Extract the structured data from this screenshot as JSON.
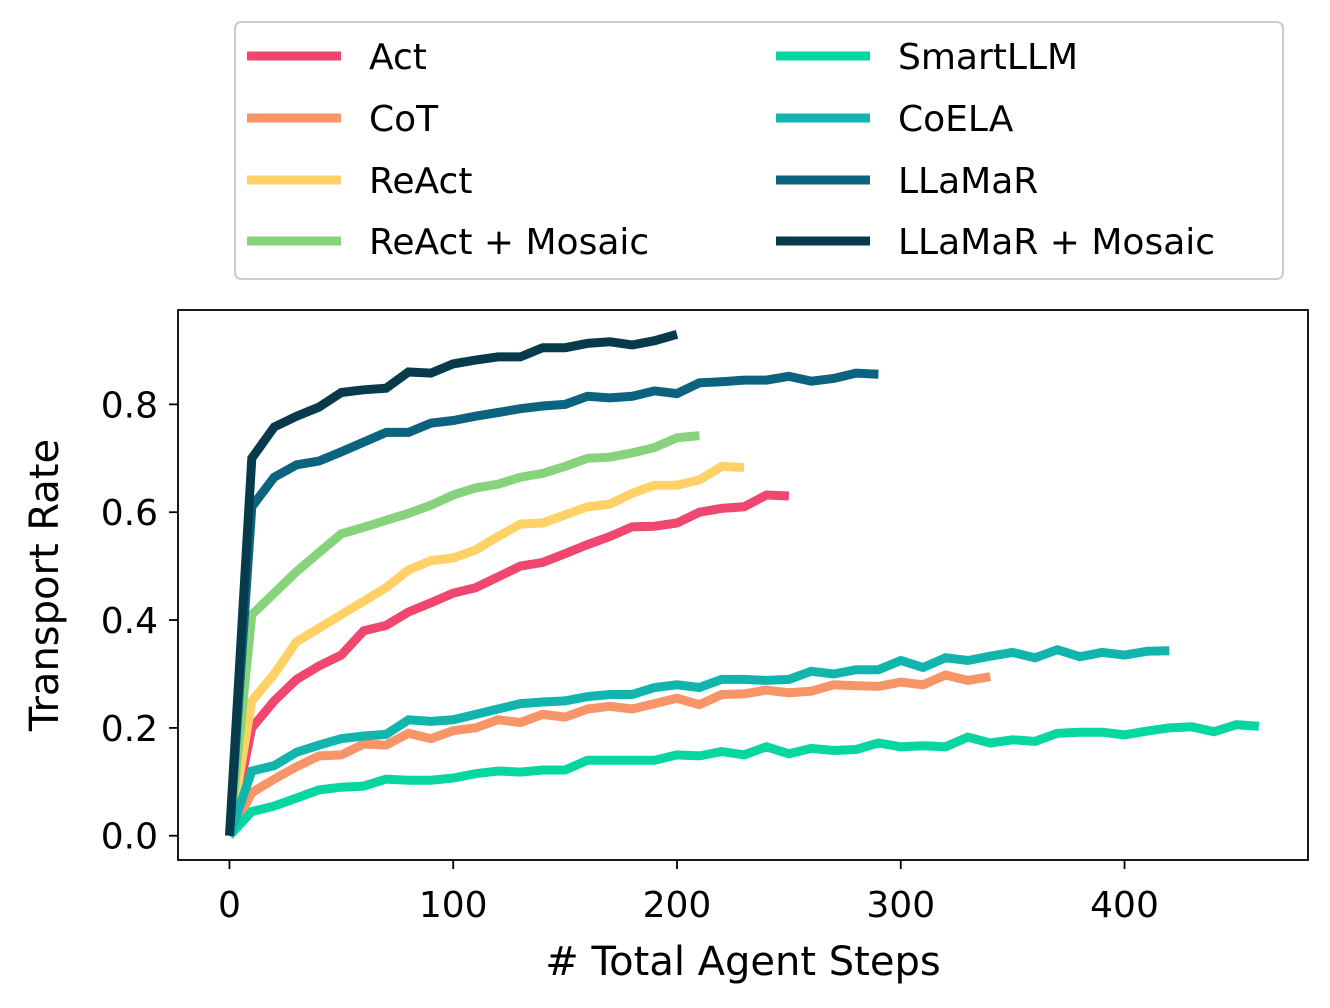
{
  "chart_data": {
    "type": "line",
    "xlabel": "# Total Agent Steps",
    "ylabel": "Transport Rate",
    "xlim": [
      -23,
      482
    ],
    "ylim": [
      -0.045,
      0.975
    ],
    "xticks": [
      0,
      100,
      200,
      300,
      400
    ],
    "yticks": [
      0.0,
      0.2,
      0.4,
      0.6,
      0.8
    ],
    "ytick_labels": [
      "0.0",
      "0.2",
      "0.4",
      "0.6",
      "0.8"
    ],
    "grid": false,
    "legend_position": "top (outside, two columns)",
    "series": [
      {
        "name": "Act",
        "color": "#ef476f",
        "x": [
          0,
          10,
          20,
          30,
          40,
          50,
          60,
          70,
          80,
          90,
          100,
          110,
          120,
          130,
          140,
          150,
          160,
          170,
          180,
          190,
          200,
          210,
          220,
          230,
          240,
          250
        ],
        "y": [
          0.0,
          0.2,
          0.25,
          0.29,
          0.315,
          0.335,
          0.38,
          0.39,
          0.415,
          0.432,
          0.45,
          0.46,
          0.48,
          0.5,
          0.507,
          0.523,
          0.54,
          0.555,
          0.573,
          0.574,
          0.58,
          0.6,
          0.607,
          0.61,
          0.632,
          0.63
        ]
      },
      {
        "name": "CoT",
        "color": "#f79468",
        "x": [
          0,
          10,
          20,
          30,
          40,
          50,
          60,
          70,
          80,
          90,
          100,
          110,
          120,
          130,
          140,
          150,
          160,
          170,
          180,
          190,
          200,
          210,
          220,
          230,
          240,
          250,
          260,
          270,
          280,
          290,
          300,
          310,
          320,
          330,
          340
        ],
        "y": [
          0.0,
          0.08,
          0.105,
          0.128,
          0.148,
          0.15,
          0.17,
          0.168,
          0.19,
          0.18,
          0.195,
          0.2,
          0.215,
          0.21,
          0.225,
          0.22,
          0.235,
          0.24,
          0.235,
          0.245,
          0.255,
          0.243,
          0.262,
          0.263,
          0.27,
          0.265,
          0.268,
          0.28,
          0.278,
          0.277,
          0.285,
          0.28,
          0.298,
          0.288,
          0.295
        ]
      },
      {
        "name": "ReAct",
        "color": "#ffd166",
        "x": [
          0,
          10,
          20,
          30,
          40,
          50,
          60,
          70,
          80,
          90,
          100,
          110,
          120,
          130,
          140,
          150,
          160,
          170,
          180,
          190,
          200,
          210,
          220,
          230
        ],
        "y": [
          0.0,
          0.25,
          0.3,
          0.36,
          0.385,
          0.41,
          0.435,
          0.46,
          0.493,
          0.51,
          0.515,
          0.53,
          0.555,
          0.578,
          0.58,
          0.595,
          0.61,
          0.615,
          0.635,
          0.65,
          0.65,
          0.66,
          0.685,
          0.683
        ]
      },
      {
        "name": "ReAct + Mosaic",
        "color": "#87d37c",
        "x": [
          0,
          10,
          20,
          30,
          40,
          50,
          60,
          70,
          80,
          90,
          100,
          110,
          120,
          130,
          140,
          150,
          160,
          170,
          180,
          190,
          200,
          210
        ],
        "y": [
          0.0,
          0.41,
          0.45,
          0.49,
          0.525,
          0.56,
          0.572,
          0.585,
          0.598,
          0.613,
          0.632,
          0.645,
          0.652,
          0.665,
          0.672,
          0.685,
          0.7,
          0.702,
          0.71,
          0.72,
          0.738,
          0.742
        ]
      },
      {
        "name": "SmartLLM",
        "color": "#06d6a0",
        "x": [
          0,
          10,
          20,
          30,
          40,
          50,
          60,
          70,
          80,
          90,
          100,
          110,
          120,
          130,
          140,
          150,
          160,
          170,
          180,
          190,
          200,
          210,
          220,
          230,
          240,
          250,
          260,
          270,
          280,
          290,
          300,
          310,
          320,
          330,
          340,
          350,
          360,
          370,
          380,
          390,
          400,
          410,
          420,
          430,
          440,
          450,
          460
        ],
        "y": [
          0.0,
          0.045,
          0.055,
          0.07,
          0.085,
          0.09,
          0.092,
          0.105,
          0.103,
          0.103,
          0.107,
          0.115,
          0.12,
          0.118,
          0.122,
          0.122,
          0.14,
          0.14,
          0.14,
          0.14,
          0.15,
          0.148,
          0.156,
          0.15,
          0.165,
          0.152,
          0.162,
          0.158,
          0.16,
          0.172,
          0.165,
          0.167,
          0.165,
          0.183,
          0.172,
          0.178,
          0.175,
          0.19,
          0.192,
          0.192,
          0.187,
          0.194,
          0.2,
          0.202,
          0.193,
          0.206,
          0.203
        ]
      },
      {
        "name": "CoELA",
        "color": "#11b5ae",
        "x": [
          0,
          10,
          20,
          30,
          40,
          50,
          60,
          70,
          80,
          90,
          100,
          110,
          120,
          130,
          140,
          150,
          160,
          170,
          180,
          190,
          200,
          210,
          220,
          230,
          240,
          250,
          260,
          270,
          280,
          290,
          300,
          310,
          320,
          330,
          340,
          350,
          360,
          370,
          380,
          390,
          400,
          410,
          420
        ],
        "y": [
          0.0,
          0.12,
          0.13,
          0.155,
          0.168,
          0.18,
          0.185,
          0.188,
          0.215,
          0.212,
          0.215,
          0.225,
          0.235,
          0.245,
          0.248,
          0.25,
          0.258,
          0.262,
          0.262,
          0.275,
          0.28,
          0.275,
          0.29,
          0.29,
          0.288,
          0.29,
          0.305,
          0.3,
          0.308,
          0.308,
          0.325,
          0.312,
          0.33,
          0.325,
          0.333,
          0.34,
          0.33,
          0.345,
          0.332,
          0.34,
          0.335,
          0.342,
          0.343
        ]
      },
      {
        "name": "LLaMaR",
        "color": "#0c637f",
        "x": [
          0,
          10,
          20,
          30,
          40,
          50,
          60,
          70,
          80,
          90,
          100,
          110,
          120,
          130,
          140,
          150,
          160,
          170,
          180,
          190,
          200,
          210,
          220,
          230,
          240,
          250,
          260,
          270,
          280,
          290
        ],
        "y": [
          0.0,
          0.61,
          0.665,
          0.688,
          0.695,
          0.712,
          0.73,
          0.748,
          0.748,
          0.765,
          0.77,
          0.778,
          0.785,
          0.792,
          0.797,
          0.8,
          0.815,
          0.812,
          0.815,
          0.825,
          0.82,
          0.84,
          0.842,
          0.845,
          0.845,
          0.852,
          0.843,
          0.848,
          0.858,
          0.856
        ]
      },
      {
        "name": "LLaMaR + Mosaic",
        "color": "#073b4c",
        "x": [
          0,
          10,
          20,
          30,
          40,
          50,
          60,
          70,
          80,
          90,
          100,
          110,
          120,
          130,
          140,
          150,
          160,
          170,
          180,
          190,
          200
        ],
        "y": [
          0.0,
          0.7,
          0.758,
          0.778,
          0.795,
          0.822,
          0.827,
          0.83,
          0.86,
          0.858,
          0.875,
          0.882,
          0.888,
          0.888,
          0.905,
          0.905,
          0.913,
          0.916,
          0.91,
          0.918,
          0.93
        ]
      }
    ]
  }
}
